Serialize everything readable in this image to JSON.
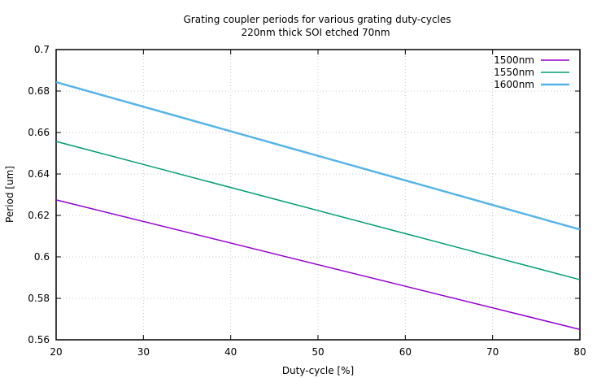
{
  "chart_data": {
    "type": "line",
    "title": "Grating coupler periods for various grating duty-cycles",
    "subtitle": "220nm thick SOI etched 70nm",
    "xlabel": "Duty-cycle [%]",
    "ylabel": "Period [um]",
    "xlim": [
      20,
      80
    ],
    "ylim": [
      0.56,
      0.7
    ],
    "xticks": [
      20,
      30,
      40,
      50,
      60,
      70,
      80
    ],
    "yticks": [
      0.56,
      0.58,
      0.6,
      0.62,
      0.64,
      0.66,
      0.68,
      0.7
    ],
    "xtick_labels": [
      "20",
      "30",
      "40",
      "50",
      "60",
      "70",
      "80"
    ],
    "ytick_labels": [
      "0.56",
      "0.58",
      "0.6",
      "0.62",
      "0.64",
      "0.66",
      "0.68",
      "0.7"
    ],
    "grid": true,
    "legend_position": "top-right",
    "series": [
      {
        "name": "1500nm",
        "color": "#9400d3",
        "x": [
          20,
          80
        ],
        "y": [
          0.6275,
          0.565
        ]
      },
      {
        "name": "1550nm",
        "color": "#009e73",
        "x": [
          20,
          80
        ],
        "y": [
          0.6557,
          0.589
        ]
      },
      {
        "name": "1600nm",
        "color": "#56b4e9",
        "x": [
          20,
          80
        ],
        "y": [
          0.6843,
          0.6132
        ]
      }
    ]
  }
}
